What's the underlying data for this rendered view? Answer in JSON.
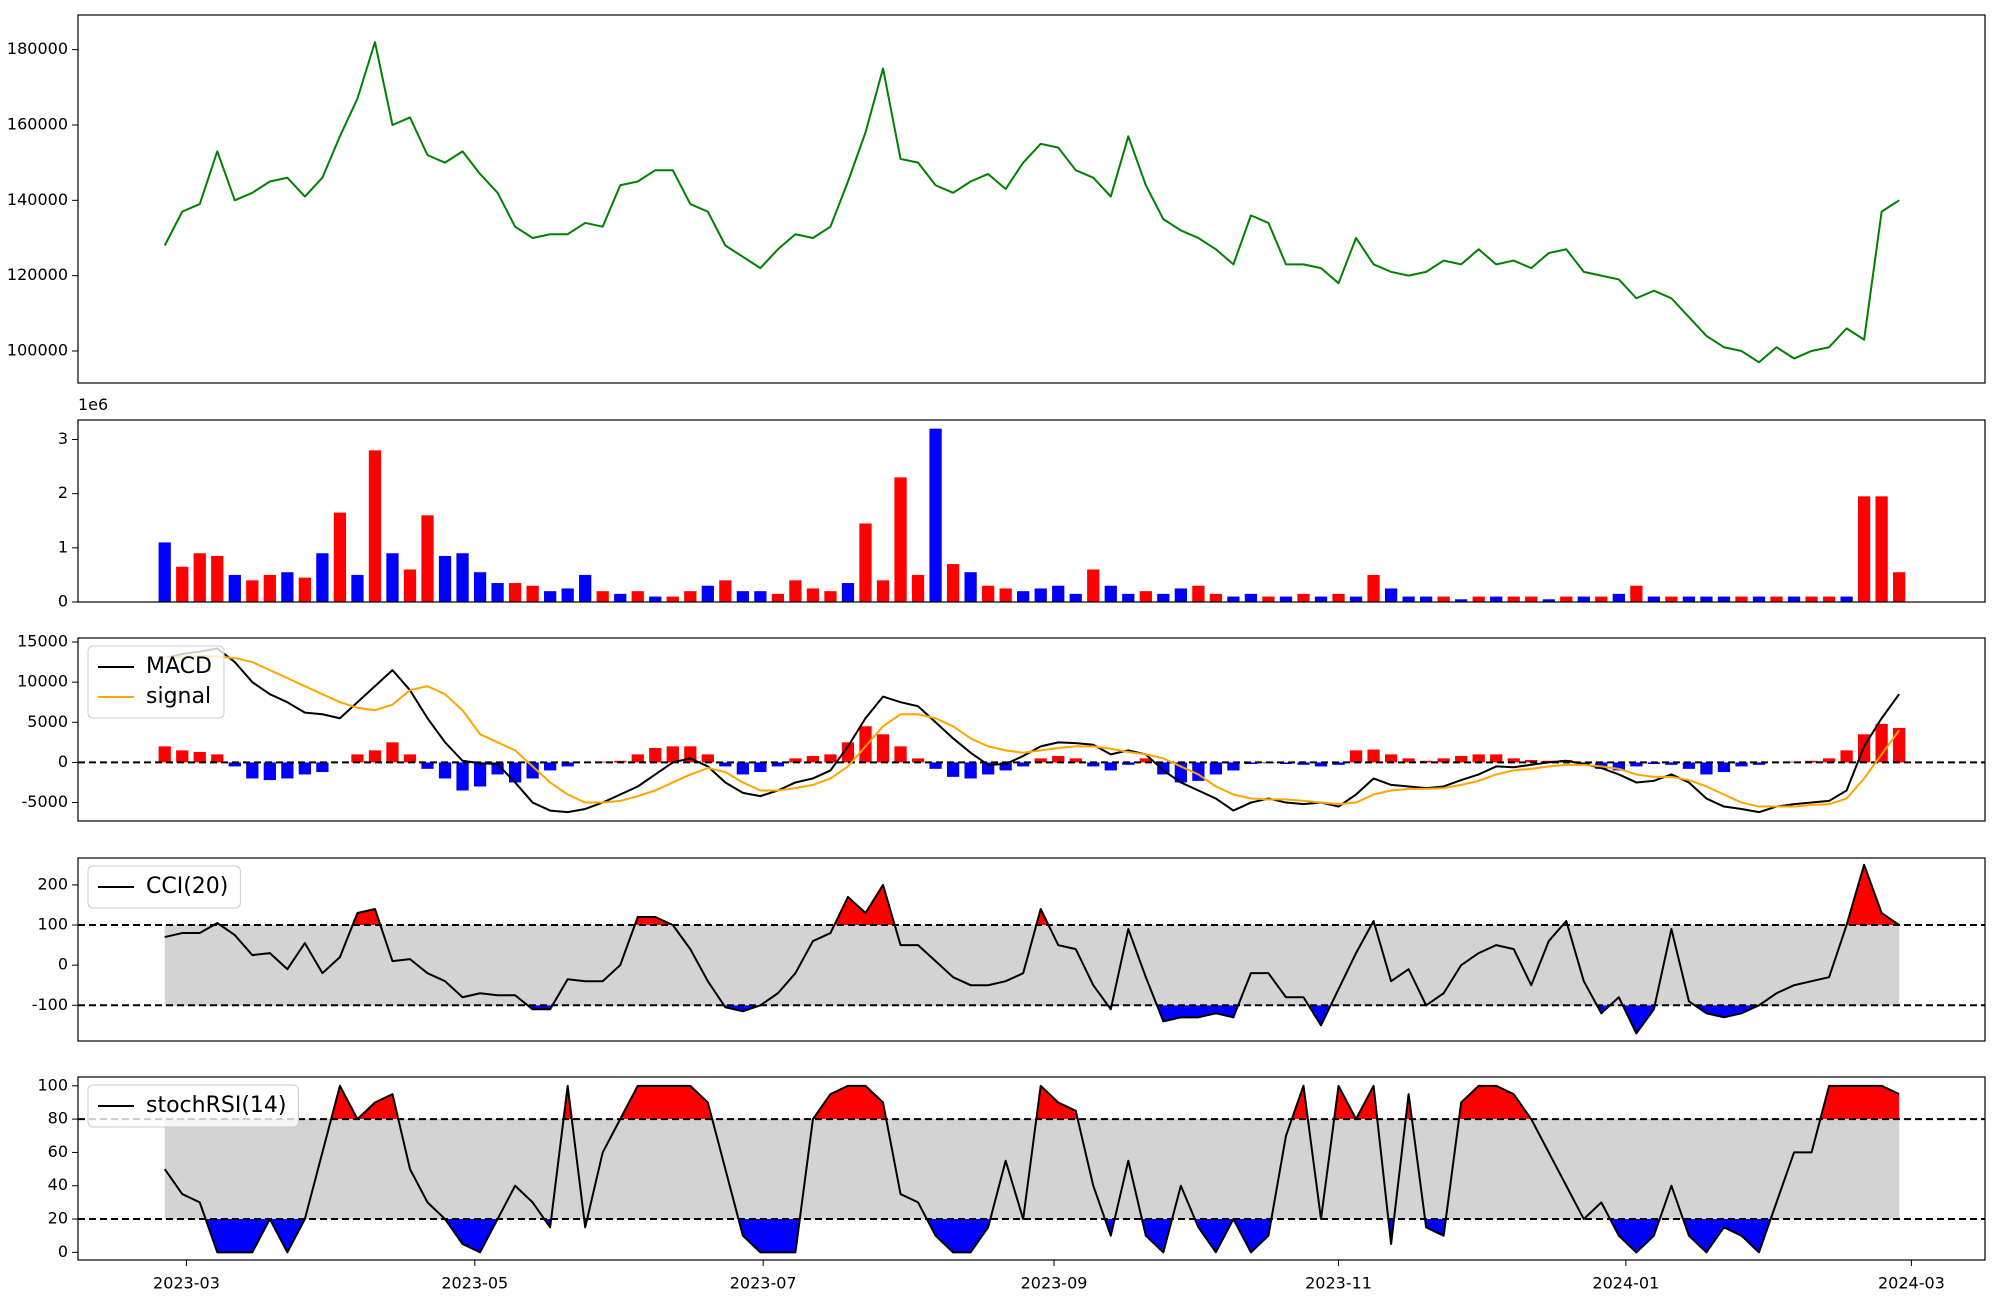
{
  "chart_data": [
    {
      "type": "line",
      "xlim": [
        -4.95,
        103.9
      ],
      "ylim": [
        91500,
        189200
      ],
      "yticks": [
        100000,
        120000,
        140000,
        160000,
        180000
      ],
      "series": [
        {
          "color": "green",
          "values": [
            128000,
            137000,
            139000,
            153000,
            140000,
            142000,
            145000,
            146000,
            141000,
            146000,
            157000,
            167000,
            182000,
            160000,
            162000,
            152000,
            150000,
            153000,
            147000,
            142000,
            133000,
            130000,
            131000,
            131000,
            134000,
            133000,
            144000,
            145000,
            148000,
            148000,
            139000,
            137000,
            128000,
            125000,
            122000,
            127000,
            131000,
            130000,
            133000,
            145000,
            158000,
            175000,
            151000,
            150000,
            144000,
            142000,
            145000,
            147000,
            143000,
            150000,
            155000,
            154000,
            148000,
            146000,
            141000,
            157000,
            144000,
            135000,
            132000,
            130000,
            127000,
            123000,
            136000,
            134000,
            123000,
            123000,
            122000,
            118000,
            130000,
            123000,
            121000,
            120000,
            121000,
            124000,
            123000,
            127000,
            123000,
            124000,
            122000,
            126000,
            127000,
            121000,
            120000,
            119000,
            114000,
            116000,
            114000,
            109000,
            104000,
            101000,
            100000,
            97000,
            101000,
            98000,
            100000,
            101000,
            106000,
            103000,
            137000,
            140000
          ]
        }
      ]
    },
    {
      "type": "bar",
      "xlim": [
        -4.95,
        103.9
      ],
      "ylim": [
        0,
        3.36
      ],
      "yticks": [
        0,
        1,
        2,
        3
      ],
      "offset_text": "1e6",
      "values": [
        1.1,
        0.65,
        0.9,
        0.85,
        0.5,
        0.4,
        0.5,
        0.55,
        0.45,
        0.9,
        1.65,
        0.5,
        2.8,
        0.9,
        0.6,
        1.6,
        0.85,
        0.9,
        0.55,
        0.35,
        0.35,
        0.3,
        0.2,
        0.25,
        0.5,
        0.2,
        0.15,
        0.2,
        0.1,
        0.1,
        0.2,
        0.3,
        0.4,
        0.2,
        0.2,
        0.15,
        0.4,
        0.25,
        0.2,
        0.35,
        1.45,
        0.4,
        2.3,
        0.5,
        3.2,
        0.7,
        0.55,
        0.3,
        0.25,
        0.2,
        0.25,
        0.3,
        0.15,
        0.6,
        0.3,
        0.15,
        0.2,
        0.15,
        0.25,
        0.3,
        0.15,
        0.1,
        0.15,
        0.1,
        0.1,
        0.15,
        0.1,
        0.15,
        0.1,
        0.5,
        0.25,
        0.1,
        0.1,
        0.1,
        0.05,
        0.1,
        0.1,
        0.1,
        0.1,
        0.05,
        0.1,
        0.1,
        0.1,
        0.15,
        0.3,
        0.1,
        0.1,
        0.1,
        0.1,
        0.1,
        0.1,
        0.1,
        0.1,
        0.1,
        0.1,
        0.1,
        0.1,
        1.95,
        1.95,
        0.55
      ],
      "colors": [
        "blue",
        "red",
        "red",
        "red",
        "blue",
        "red",
        "red",
        "blue",
        "red",
        "blue",
        "red",
        "blue",
        "red",
        "blue",
        "red",
        "red",
        "blue",
        "blue",
        "blue",
        "blue",
        "red",
        "red",
        "blue",
        "blue",
        "blue",
        "red",
        "blue",
        "red",
        "blue",
        "red",
        "red",
        "blue",
        "red",
        "blue",
        "blue",
        "red",
        "red",
        "red",
        "red",
        "blue",
        "red",
        "red",
        "red",
        "red",
        "blue",
        "red",
        "blue",
        "red",
        "red",
        "blue",
        "blue",
        "blue",
        "blue",
        "red",
        "blue",
        "blue",
        "red",
        "blue",
        "blue",
        "red",
        "red",
        "blue",
        "blue",
        "red",
        "blue",
        "red",
        "blue",
        "red",
        "blue",
        "red",
        "blue",
        "blue",
        "blue",
        "red",
        "blue",
        "red",
        "blue",
        "red",
        "red",
        "blue",
        "red",
        "blue",
        "red",
        "blue",
        "red",
        "blue",
        "red",
        "blue",
        "blue",
        "blue",
        "red",
        "blue",
        "red",
        "blue",
        "red",
        "red",
        "blue",
        "red",
        "red",
        "red"
      ]
    },
    {
      "type": "macd",
      "xlim": [
        -4.95,
        103.9
      ],
      "ylim": [
        -7300,
        15500
      ],
      "yticks": [
        -5000,
        0,
        5000,
        10000,
        15000
      ],
      "hlines": [
        0
      ],
      "legend": "upper left",
      "histogram": {
        "pos_color": "red",
        "neg_color": "blue",
        "values": [
          2000,
          1500,
          1300,
          1000,
          -500,
          -2000,
          -2200,
          -2000,
          -1500,
          -1200,
          0,
          1000,
          1500,
          2500,
          1000,
          -800,
          -2000,
          -3500,
          -3000,
          -1500,
          -2500,
          -2000,
          -1000,
          -500,
          0,
          100,
          200,
          1000,
          1800,
          2000,
          2000,
          1000,
          -500,
          -1500,
          -1200,
          -500,
          500,
          800,
          1000,
          2500,
          4500,
          3500,
          2000,
          500,
          -800,
          -1800,
          -2000,
          -1500,
          -1000,
          -500,
          500,
          800,
          500,
          -500,
          -1000,
          -300,
          500,
          -1500,
          -2500,
          -2300,
          -1500,
          -1000,
          -200,
          -100,
          -200,
          -300,
          -500,
          -300,
          1500,
          1600,
          1000,
          500,
          200,
          500,
          800,
          1000,
          1000,
          500,
          300,
          200,
          300,
          -300,
          -800,
          -1000,
          -500,
          -200,
          -300,
          -800,
          -1500,
          -1200,
          -500,
          -300,
          0,
          100,
          200,
          500,
          1500,
          3500,
          4800,
          4300
        ]
      },
      "series": [
        {
          "name": "MACD",
          "color": "black",
          "values": [
            13000,
            13500,
            13800,
            14200,
            12500,
            10000,
            8500,
            7500,
            6200,
            6000,
            5500,
            7500,
            9500,
            11500,
            9000,
            5500,
            2500,
            200,
            -100,
            -200,
            -2500,
            -5000,
            -6000,
            -6200,
            -5800,
            -5000,
            -4000,
            -3000,
            -1500,
            0,
            500,
            -500,
            -2500,
            -3800,
            -4200,
            -3500,
            -2500,
            -2000,
            -1000,
            2000,
            5500,
            8200,
            7500,
            7000,
            5000,
            3000,
            1200,
            -300,
            -200,
            800,
            2000,
            2500,
            2400,
            2200,
            1000,
            1500,
            1000,
            -1000,
            -2500,
            -3500,
            -4500,
            -6000,
            -5000,
            -4500,
            -5000,
            -5200,
            -5000,
            -5500,
            -4000,
            -2000,
            -2800,
            -3000,
            -3200,
            -3000,
            -2200,
            -1500,
            -500,
            -600,
            -300,
            0,
            200,
            -200,
            -700,
            -1500,
            -2500,
            -2300,
            -1500,
            -2500,
            -4500,
            -5500,
            -5800,
            -6200,
            -5500,
            -5200,
            -5000,
            -4800,
            -3500,
            2000,
            5500,
            8500
          ]
        },
        {
          "name": "signal",
          "color": "orange",
          "values": [
            13000,
            13200,
            13300,
            13200,
            13000,
            12500,
            11500,
            10500,
            9500,
            8500,
            7500,
            6800,
            6500,
            7200,
            9000,
            9500,
            8500,
            6500,
            3500,
            2500,
            1500,
            -500,
            -2500,
            -4000,
            -5000,
            -5000,
            -4800,
            -4200,
            -3500,
            -2500,
            -1500,
            -700,
            -1200,
            -2500,
            -3500,
            -3500,
            -3200,
            -2800,
            -2000,
            -500,
            2000,
            4500,
            6000,
            6000,
            5500,
            4500,
            3000,
            2000,
            1500,
            1200,
            1500,
            1800,
            2000,
            2000,
            1700,
            1300,
            1000,
            500,
            -500,
            -1500,
            -3000,
            -4000,
            -4500,
            -4600,
            -4600,
            -4800,
            -5000,
            -5200,
            -5000,
            -4000,
            -3500,
            -3300,
            -3300,
            -3200,
            -2800,
            -2300,
            -1500,
            -1000,
            -800,
            -500,
            -300,
            -300,
            -500,
            -800,
            -1500,
            -1800,
            -1800,
            -2200,
            -3000,
            -4000,
            -5000,
            -5500,
            -5500,
            -5500,
            -5300,
            -5200,
            -4500,
            -2000,
            1000,
            4000
          ]
        }
      ]
    },
    {
      "type": "oscillator",
      "xlim": [
        -4.95,
        103.9
      ],
      "ylim": [
        -189,
        267
      ],
      "yticks": [
        -100,
        0,
        100,
        200
      ],
      "hlines": [
        100,
        -100
      ],
      "legend": "upper left",
      "band_color": "lightgray",
      "above_color": "red",
      "below_color": "blue",
      "series": [
        {
          "name": "CCI(20)",
          "color": "black",
          "values": [
            70,
            80,
            80,
            105,
            75,
            25,
            30,
            -10,
            55,
            -20,
            20,
            130,
            140,
            10,
            15,
            -20,
            -40,
            -80,
            -70,
            -75,
            -75,
            -110,
            -110,
            -35,
            -40,
            -40,
            0,
            120,
            120,
            100,
            40,
            -40,
            -105,
            -115,
            -100,
            -70,
            -20,
            60,
            80,
            170,
            130,
            200,
            50,
            50,
            10,
            -30,
            -50,
            -50,
            -40,
            -20,
            140,
            50,
            40,
            -50,
            -110,
            90,
            -30,
            -140,
            -130,
            -130,
            -120,
            -130,
            -20,
            -20,
            -80,
            -80,
            -150,
            -60,
            30,
            110,
            -40,
            -10,
            -100,
            -70,
            0,
            30,
            50,
            40,
            -50,
            60,
            110,
            -40,
            -120,
            -80,
            -170,
            -110,
            90,
            -90,
            -120,
            -130,
            -120,
            -100,
            -70,
            -50,
            -40,
            -30,
            100,
            250,
            130,
            100
          ]
        }
      ]
    },
    {
      "type": "oscillator",
      "xlim": [
        -4.95,
        103.9
      ],
      "ylim": [
        -4.6,
        105.3
      ],
      "yticks": [
        0,
        20,
        40,
        60,
        80,
        100
      ],
      "hlines": [
        80,
        20
      ],
      "legend": "upper left",
      "band_color": "lightgray",
      "above_color": "red",
      "below_color": "blue",
      "xticks": [
        {
          "value": 1.24,
          "label": "2023-03"
        },
        {
          "value": 17.7,
          "label": "2023-05"
        },
        {
          "value": 34.16,
          "label": "2023-07"
        },
        {
          "value": 50.76,
          "label": "2023-09"
        },
        {
          "value": 67.0,
          "label": "2023-11"
        },
        {
          "value": 83.4,
          "label": "2024-01"
        },
        {
          "value": 99.7,
          "label": "2024-03"
        }
      ],
      "series": [
        {
          "name": "stochRSI(14)",
          "color": "black",
          "values": [
            50,
            35,
            30,
            0,
            0,
            0,
            20,
            0,
            20,
            60,
            100,
            80,
            90,
            95,
            50,
            30,
            20,
            5,
            0,
            20,
            40,
            30,
            15,
            100,
            15,
            60,
            80,
            100,
            100,
            100,
            100,
            90,
            50,
            10,
            0,
            0,
            0,
            80,
            95,
            100,
            100,
            90,
            35,
            30,
            10,
            0,
            0,
            15,
            55,
            20,
            100,
            90,
            85,
            40,
            10,
            55,
            10,
            0,
            40,
            15,
            0,
            20,
            0,
            10,
            70,
            100,
            20,
            100,
            80,
            100,
            5,
            95,
            15,
            10,
            90,
            100,
            100,
            95,
            80,
            60,
            40,
            20,
            30,
            10,
            0,
            10,
            40,
            10,
            0,
            15,
            10,
            0,
            30,
            60,
            60,
            100,
            100,
            100,
            100,
            95
          ]
        }
      ]
    }
  ]
}
